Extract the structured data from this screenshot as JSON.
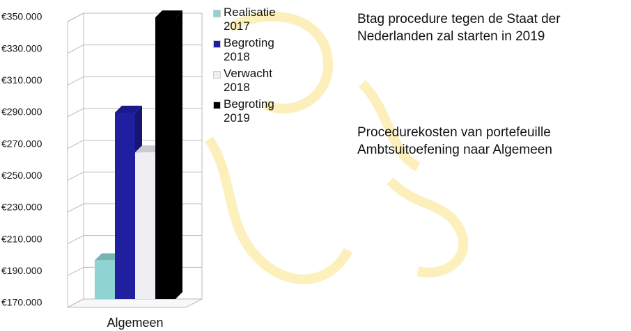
{
  "chart_data": {
    "type": "bar",
    "categories": [
      "Algemeen"
    ],
    "series": [
      {
        "name": "Realisatie 2017",
        "color": "#8fd3d3",
        "values": [
          197000
        ]
      },
      {
        "name": "Begroting 2018",
        "color": "#1f1fa0",
        "values": [
          290000
        ]
      },
      {
        "name": "Verwacht 2018",
        "color": "#eeeef3",
        "values": [
          265000
        ]
      },
      {
        "name": "Begroting 2019",
        "color": "#000000",
        "values": [
          350000
        ]
      }
    ],
    "ylim": [
      170000,
      350000
    ],
    "yticks": [
      {
        "value": 170000,
        "label": "€170.000"
      },
      {
        "value": 190000,
        "label": "€190.000"
      },
      {
        "value": 210000,
        "label": "€210.000"
      },
      {
        "value": 230000,
        "label": "€230.000"
      },
      {
        "value": 250000,
        "label": "€250.000"
      },
      {
        "value": 270000,
        "label": "€270.000"
      },
      {
        "value": 290000,
        "label": "€290.000"
      },
      {
        "value": 310000,
        "label": "€310.000"
      },
      {
        "value": 330000,
        "label": "€330.000"
      },
      {
        "value": 350000,
        "label": "€350.000"
      }
    ],
    "grid": true
  },
  "notes": [
    "Btag procedure tegen de Staat der Nederlanden zal starten in 2019",
    "Procedurekosten van portefeuille Ambtsuitoefening naar Algemeen"
  ]
}
